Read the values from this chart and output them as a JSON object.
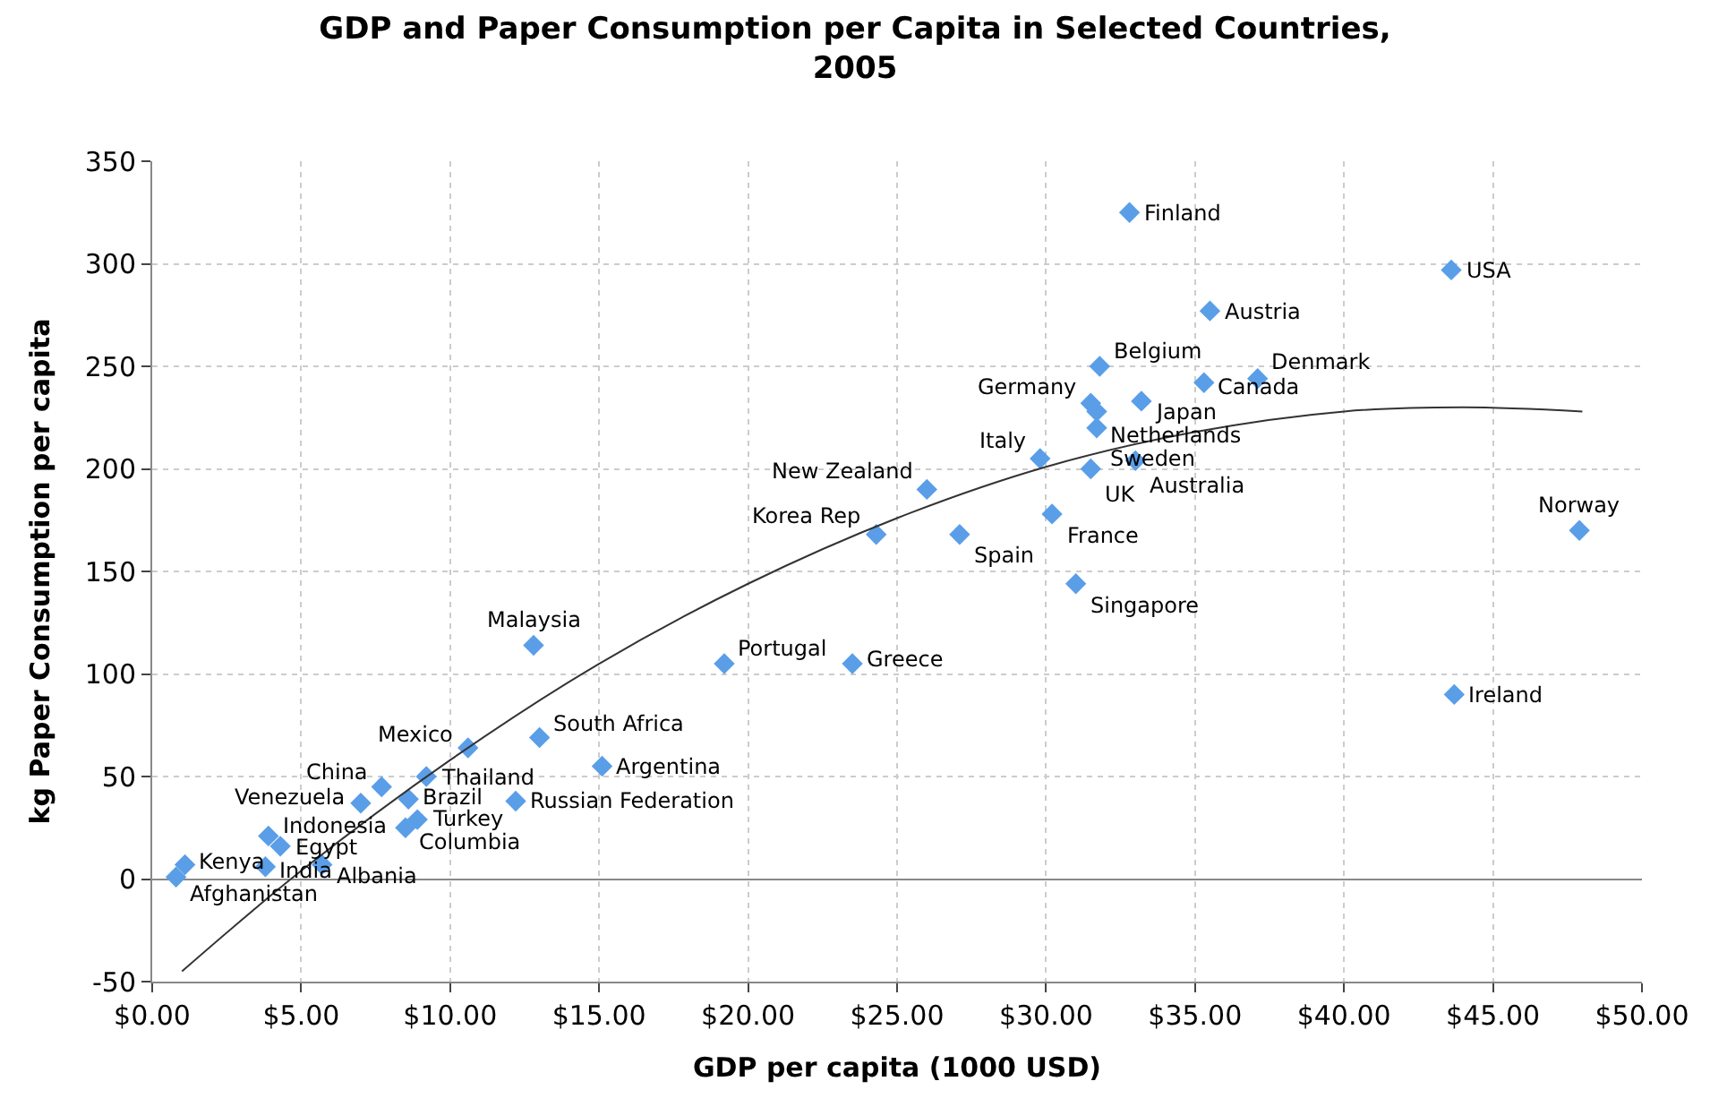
{
  "chart_data": {
    "type": "scatter",
    "title": "GDP and Paper Consumption per Capita in Selected Countries, 2005",
    "xlabel": "GDP per capita (1000 USD)",
    "ylabel": "kg Paper Consumption per capita",
    "xlim": [
      0,
      50
    ],
    "ylim": [
      -50,
      350
    ],
    "xticks": [
      {
        "value": 0,
        "label": "$0.00"
      },
      {
        "value": 5,
        "label": "$5.00"
      },
      {
        "value": 10,
        "label": "$10.00"
      },
      {
        "value": 15,
        "label": "$15.00"
      },
      {
        "value": 20,
        "label": "$20.00"
      },
      {
        "value": 25,
        "label": "$25.00"
      },
      {
        "value": 30,
        "label": "$30.00"
      },
      {
        "value": 35,
        "label": "$35.00"
      },
      {
        "value": 40,
        "label": "$40.00"
      },
      {
        "value": 45,
        "label": "$45.00"
      },
      {
        "value": 50,
        "label": "$50.00"
      }
    ],
    "yticks": [
      -50,
      0,
      50,
      100,
      150,
      200,
      250,
      300,
      350
    ],
    "grid": true,
    "series": [
      {
        "marker": "diamond",
        "color": "#5a9ee8",
        "x": [
          32.8,
          43.6,
          35.5,
          31.8,
          35.3,
          37.1,
          31.5,
          33.2,
          31.7,
          31.7,
          33.0,
          31.5,
          29.8,
          30.2,
          27.1,
          31.0,
          26.0,
          24.3,
          12.8,
          19.2,
          23.5,
          47.9,
          43.7,
          10.6,
          13.0,
          15.1,
          7.7,
          9.2,
          7.0,
          8.6,
          12.2,
          8.9,
          8.5,
          3.9,
          4.3,
          1.1,
          3.8,
          5.7,
          0.8
        ],
        "values": [
          325,
          297,
          277,
          250,
          242,
          244,
          232,
          233,
          228,
          220,
          204,
          200,
          205,
          178,
          168,
          144,
          190,
          168,
          114,
          105,
          105,
          170,
          90,
          64,
          69,
          55,
          45,
          50,
          37,
          39,
          38,
          29,
          25,
          21,
          16,
          7,
          6,
          7,
          1
        ]
      },
      {
        "type": "line",
        "color": "#333333",
        "marker": "none",
        "line_style": "solid",
        "x": [
          1,
          5,
          10,
          15,
          20,
          25,
          30,
          35,
          40,
          44,
          48
        ],
        "values": [
          -45,
          4,
          58,
          105,
          144,
          176,
          201,
          218,
          228,
          230,
          228
        ]
      }
    ],
    "annotations": [
      {
        "text": "Finland",
        "x": 32.8,
        "y": 325
      },
      {
        "text": "USA",
        "x": 43.6,
        "y": 297
      },
      {
        "text": "Austria",
        "x": 35.5,
        "y": 277
      },
      {
        "text": "Belgium",
        "x": 31.8,
        "y": 250
      },
      {
        "text": "Canada",
        "x": 35.3,
        "y": 242
      },
      {
        "text": "Denmark",
        "x": 37.1,
        "y": 244
      },
      {
        "text": "Germany",
        "x": 31.5,
        "y": 232
      },
      {
        "text": "Japan",
        "x": 33.2,
        "y": 233
      },
      {
        "text": "Netherlands",
        "x": 31.7,
        "y": 228
      },
      {
        "text": "Sweden",
        "x": 31.7,
        "y": 220
      },
      {
        "text": "Australia",
        "x": 33.0,
        "y": 204
      },
      {
        "text": "UK",
        "x": 31.5,
        "y": 200
      },
      {
        "text": "Italy",
        "x": 29.8,
        "y": 205
      },
      {
        "text": "France",
        "x": 30.2,
        "y": 178
      },
      {
        "text": "Spain",
        "x": 27.1,
        "y": 168
      },
      {
        "text": "Singapore",
        "x": 31.0,
        "y": 144
      },
      {
        "text": "New Zealand",
        "x": 26.0,
        "y": 190
      },
      {
        "text": "Korea Rep",
        "x": 24.3,
        "y": 168
      },
      {
        "text": "Malaysia",
        "x": 12.8,
        "y": 114
      },
      {
        "text": "Portugal",
        "x": 19.2,
        "y": 105
      },
      {
        "text": "Greece",
        "x": 23.5,
        "y": 105
      },
      {
        "text": "Norway",
        "x": 47.9,
        "y": 170
      },
      {
        "text": "Ireland",
        "x": 43.7,
        "y": 90
      },
      {
        "text": "Mexico",
        "x": 10.6,
        "y": 64
      },
      {
        "text": "South Africa",
        "x": 13.0,
        "y": 69
      },
      {
        "text": "Argentina",
        "x": 15.1,
        "y": 55
      },
      {
        "text": "China",
        "x": 7.7,
        "y": 45
      },
      {
        "text": "Thailand",
        "x": 9.2,
        "y": 50
      },
      {
        "text": "Venezuela",
        "x": 7.0,
        "y": 37
      },
      {
        "text": "Brazil",
        "x": 8.6,
        "y": 39
      },
      {
        "text": "Russian Federation",
        "x": 12.2,
        "y": 38
      },
      {
        "text": "Turkey",
        "x": 8.9,
        "y": 29
      },
      {
        "text": "Columbia",
        "x": 8.5,
        "y": 25
      },
      {
        "text": "Indonesia",
        "x": 3.9,
        "y": 21
      },
      {
        "text": "Egypt",
        "x": 4.3,
        "y": 16
      },
      {
        "text": "Kenya",
        "x": 1.1,
        "y": 7
      },
      {
        "text": "India",
        "x": 3.8,
        "y": 6
      },
      {
        "text": "Albania",
        "x": 5.7,
        "y": 7
      },
      {
        "text": "Afghanistan",
        "x": 0.8,
        "y": 1
      }
    ]
  }
}
